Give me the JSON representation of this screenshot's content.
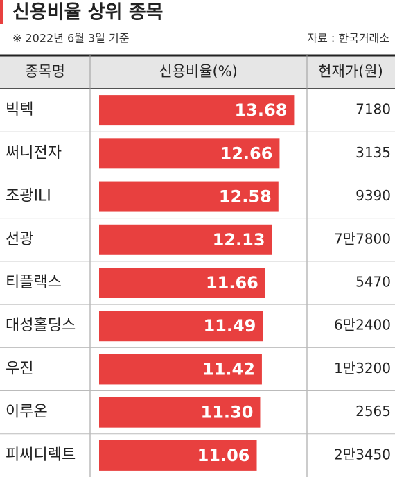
{
  "chart_data": {
    "type": "bar",
    "title": "신용비율 상위 종목",
    "subtitle": "※ 2022년 6월 3일 기준",
    "source": "자료 : 한국거래소",
    "headers": [
      "종목명",
      "신용비율(%)",
      "현재가(원)"
    ],
    "categories": [
      "빅텍",
      "써니전자",
      "조광ILI",
      "선광",
      "티플랙스",
      "대성홀딩스",
      "우진",
      "이루온",
      "피씨디렉트"
    ],
    "values": [
      13.68,
      12.66,
      12.58,
      12.13,
      11.66,
      11.49,
      11.42,
      11.3,
      11.06
    ],
    "value_labels": [
      "13.68",
      "12.66",
      "12.58",
      "12.13",
      "11.66",
      "11.49",
      "11.42",
      "11.30",
      "11.06"
    ],
    "prices": [
      "7180",
      "3135",
      "9390",
      "7만7800",
      "5470",
      "6만2400",
      "1만3200",
      "2565",
      "2만3450"
    ],
    "color": "#e8403f",
    "xlim": [
      0,
      14
    ]
  }
}
